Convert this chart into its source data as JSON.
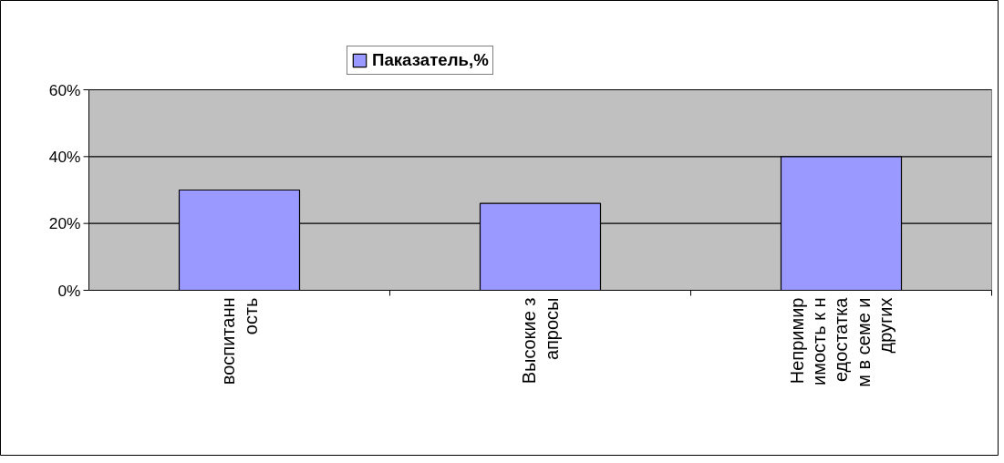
{
  "chart_data": {
    "type": "bar",
    "categories": [
      "воспитанн\nость",
      "Высокие з\nапросы",
      "Непримир\nимость к н\nедостатка\nм в семе и\nдругих"
    ],
    "series": [
      {
        "name": "Паказатель,%",
        "color": "#9999ff",
        "values": [
          30,
          26,
          40
        ]
      }
    ],
    "ylim": [
      0,
      60
    ],
    "yticks": [
      {
        "value": 0,
        "label": "0%"
      },
      {
        "value": 20,
        "label": "20%"
      },
      {
        "value": 40,
        "label": "40%"
      },
      {
        "value": 60,
        "label": "60%"
      }
    ],
    "grid": "y",
    "legend": "top"
  }
}
